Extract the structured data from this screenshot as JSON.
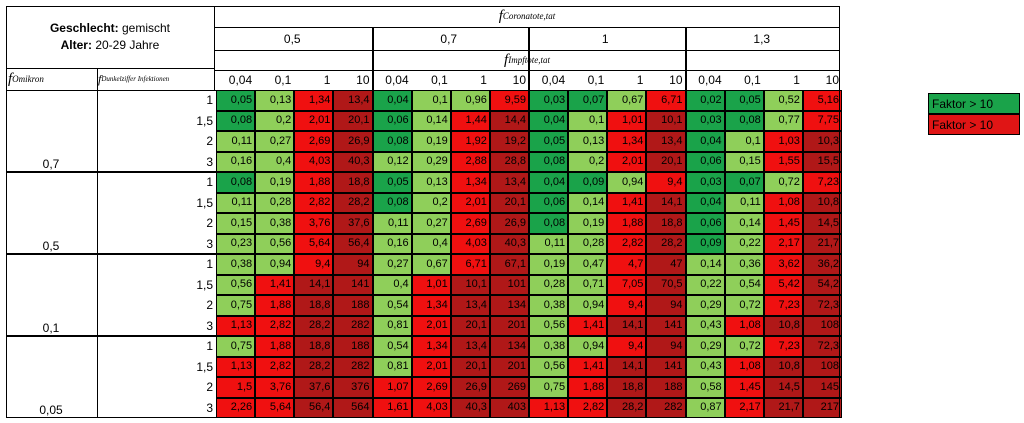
{
  "header": {
    "gender_label": "Geschlecht:",
    "gender_value": "gemischt",
    "age_label": "Alter:",
    "age_value": "20-29 Jahre",
    "f_coronatote": {
      "base": "f",
      "sub": "Coronatote,tat"
    },
    "f_impftote": {
      "base": "f",
      "sub": "Impftote,tat"
    },
    "f_omikron": {
      "base": "f",
      "sub": "Omikron"
    },
    "f_dunkelziffer": {
      "base": "f",
      "sub": "Dunkelziffer Infektionen"
    },
    "corona_groups": [
      "0,5",
      "0,7",
      "1",
      "1,3"
    ],
    "impf_values": [
      "0,04",
      "0,1",
      "1",
      "10"
    ]
  },
  "legend": [
    {
      "label": "Faktor > 10",
      "color": "#1aa34a"
    },
    {
      "label": "Faktor > 10",
      "color": "#e01515"
    }
  ],
  "colors": {
    "dark_green": "#1aa34a",
    "light_green": "#8fcf5a",
    "red": "#f01010",
    "dark_red": "#b01818"
  },
  "blocks": [
    {
      "omikron": "0,7",
      "rows": [
        {
          "dunkel": "1",
          "values": [
            "0,05",
            "0,13",
            "1,34",
            "13,4",
            "0,04",
            "0,1",
            "0,96",
            "9,59",
            "0,03",
            "0,07",
            "0,67",
            "6,71",
            "0,02",
            "0,05",
            "0,52",
            "5,16"
          ]
        },
        {
          "dunkel": "1,5",
          "values": [
            "0,08",
            "0,2",
            "2,01",
            "20,1",
            "0,06",
            "0,14",
            "1,44",
            "14,4",
            "0,04",
            "0,1",
            "1,01",
            "10,1",
            "0,03",
            "0,08",
            "0,77",
            "7,75"
          ]
        },
        {
          "dunkel": "2",
          "values": [
            "0,11",
            "0,27",
            "2,69",
            "26,9",
            "0,08",
            "0,19",
            "1,92",
            "19,2",
            "0,05",
            "0,13",
            "1,34",
            "13,4",
            "0,04",
            "0,1",
            "1,03",
            "10,3"
          ]
        },
        {
          "dunkel": "3",
          "values": [
            "0,16",
            "0,4",
            "4,03",
            "40,3",
            "0,12",
            "0,29",
            "2,88",
            "28,8",
            "0,08",
            "0,2",
            "2,01",
            "20,1",
            "0,06",
            "0,15",
            "1,55",
            "15,5"
          ]
        }
      ]
    },
    {
      "omikron": "0,5",
      "rows": [
        {
          "dunkel": "1",
          "values": [
            "0,08",
            "0,19",
            "1,88",
            "18,8",
            "0,05",
            "0,13",
            "1,34",
            "13,4",
            "0,04",
            "0,09",
            "0,94",
            "9,4",
            "0,03",
            "0,07",
            "0,72",
            "7,23"
          ]
        },
        {
          "dunkel": "1,5",
          "values": [
            "0,11",
            "0,28",
            "2,82",
            "28,2",
            "0,08",
            "0,2",
            "2,01",
            "20,1",
            "0,06",
            "0,14",
            "1,41",
            "14,1",
            "0,04",
            "0,11",
            "1,08",
            "10,8"
          ]
        },
        {
          "dunkel": "2",
          "values": [
            "0,15",
            "0,38",
            "3,76",
            "37,6",
            "0,11",
            "0,27",
            "2,69",
            "26,9",
            "0,08",
            "0,19",
            "1,88",
            "18,8",
            "0,06",
            "0,14",
            "1,45",
            "14,5"
          ]
        },
        {
          "dunkel": "3",
          "values": [
            "0,23",
            "0,56",
            "5,64",
            "56,4",
            "0,16",
            "0,4",
            "4,03",
            "40,3",
            "0,11",
            "0,28",
            "2,82",
            "28,2",
            "0,09",
            "0,22",
            "2,17",
            "21,7"
          ]
        }
      ]
    },
    {
      "omikron": "0,1",
      "rows": [
        {
          "dunkel": "1",
          "values": [
            "0,38",
            "0,94",
            "9,4",
            "94",
            "0,27",
            "0,67",
            "6,71",
            "67,1",
            "0,19",
            "0,47",
            "4,7",
            "47",
            "0,14",
            "0,36",
            "3,62",
            "36,2"
          ]
        },
        {
          "dunkel": "1,5",
          "values": [
            "0,56",
            "1,41",
            "14,1",
            "141",
            "0,4",
            "1,01",
            "10,1",
            "101",
            "0,28",
            "0,71",
            "7,05",
            "70,5",
            "0,22",
            "0,54",
            "5,42",
            "54,2"
          ]
        },
        {
          "dunkel": "2",
          "values": [
            "0,75",
            "1,88",
            "18,8",
            "188",
            "0,54",
            "1,34",
            "13,4",
            "134",
            "0,38",
            "0,94",
            "9,4",
            "94",
            "0,29",
            "0,72",
            "7,23",
            "72,3"
          ]
        },
        {
          "dunkel": "3",
          "values": [
            "1,13",
            "2,82",
            "28,2",
            "282",
            "0,81",
            "2,01",
            "20,1",
            "201",
            "0,56",
            "1,41",
            "14,1",
            "141",
            "0,43",
            "1,08",
            "10,8",
            "108"
          ]
        }
      ]
    },
    {
      "omikron": "0,05",
      "rows": [
        {
          "dunkel": "1",
          "values": [
            "0,75",
            "1,88",
            "18,8",
            "188",
            "0,54",
            "1,34",
            "13,4",
            "134",
            "0,38",
            "0,94",
            "9,4",
            "94",
            "0,29",
            "0,72",
            "7,23",
            "72,3"
          ]
        },
        {
          "dunkel": "1,5",
          "values": [
            "1,13",
            "2,82",
            "28,2",
            "282",
            "0,81",
            "2,01",
            "20,1",
            "201",
            "0,56",
            "1,41",
            "14,1",
            "141",
            "0,43",
            "1,08",
            "10,8",
            "108"
          ]
        },
        {
          "dunkel": "2",
          "values": [
            "1,5",
            "3,76",
            "37,6",
            "376",
            "1,07",
            "2,69",
            "26,9",
            "269",
            "0,75",
            "1,88",
            "18,8",
            "188",
            "0,58",
            "1,45",
            "14,5",
            "145"
          ]
        },
        {
          "dunkel": "3",
          "values": [
            "2,26",
            "5,64",
            "56,4",
            "564",
            "1,61",
            "4,03",
            "40,3",
            "403",
            "1,13",
            "2,82",
            "28,2",
            "282",
            "0,87",
            "2,17",
            "21,7",
            "217"
          ]
        }
      ]
    }
  ]
}
